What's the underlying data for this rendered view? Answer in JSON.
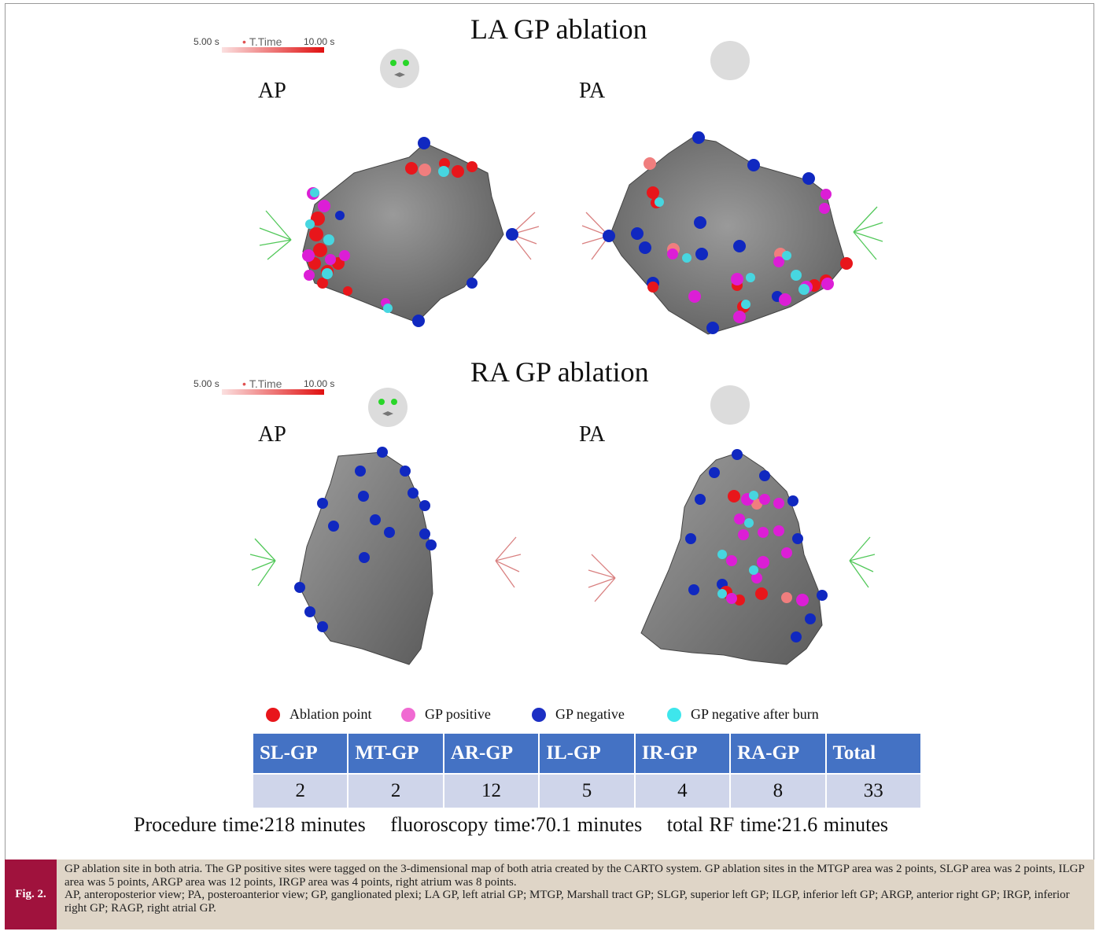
{
  "figure": {
    "sections": [
      {
        "title": "LA  GP ablation",
        "ttime": {
          "min": "5.00 s",
          "label": "T.Time",
          "max": "10.00 s"
        },
        "views": [
          "AP",
          "PA"
        ]
      },
      {
        "title": "RA  GP ablation",
        "ttime": {
          "min": "5.00 s",
          "label": "T.Time",
          "max": "10.00 s"
        },
        "views": [
          "AP",
          "PA"
        ]
      }
    ],
    "legend": [
      {
        "label": "Ablation point",
        "color": "#e8161b"
      },
      {
        "label": "GP positive",
        "color": "#f06ad2"
      },
      {
        "label": "GP negative",
        "color": "#1c2fc4"
      },
      {
        "label": "GP negative after burn",
        "color": "#3ee6ec"
      }
    ],
    "marker_colors": {
      "ablation": "#e8161b",
      "ablation_light": "#f07e7e",
      "gp_positive": "#dc1ed6",
      "gp_negative": "#1028c0",
      "after_burn": "#47d6e0",
      "surface": "#7a7a7a",
      "axis_green": "#49c84f",
      "axis_red": "#d98080"
    },
    "table": {
      "headers": [
        "SL-GP",
        "MT-GP",
        "AR-GP",
        "IL-GP",
        "IR-GP",
        "RA-GP",
        "Total"
      ],
      "values": [
        "2",
        "2",
        "12",
        "5",
        "4",
        "8",
        "33"
      ]
    },
    "times": {
      "procedure": "Procedure time∶218 minutes",
      "fluoroscopy": "fluoroscopy time∶70.1 minutes",
      "rf": "total RF time∶21.6 minutes"
    }
  },
  "caption": {
    "tag": "Fig. 2.",
    "text1": "GP ablation site in both atria. The GP positive sites were tagged on the 3-dimensional map of both atria created by the CARTO system. GP ablation sites in the MTGP area was 2 points, SLGP area was 2 points, ILGP area was 5 points, ARGP area was 12 points, IRGP area was 4 points, right atrium was 8 points.",
    "text2": "AP, anteroposterior view; PA, posteroanterior view; GP, ganglionated plexi; LA GP, left atrial GP; MTGP, Marshall tract GP; SLGP, superior left GP; ILGP, inferior left GP; ARGP, anterior right GP; IRGP, inferior right GP; RAGP, right atrial GP."
  }
}
